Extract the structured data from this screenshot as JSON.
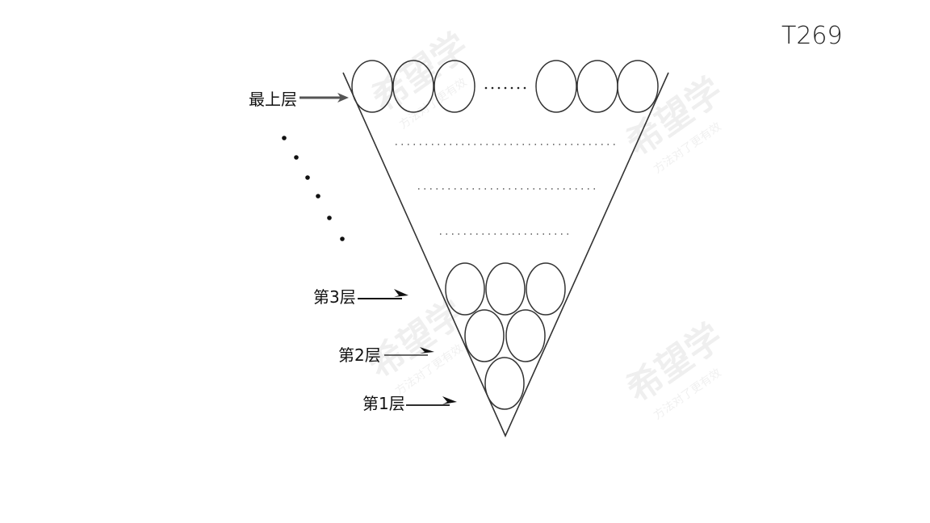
{
  "annotation": "T269",
  "labels": {
    "top": "最上层",
    "layer3": "第3层",
    "layer2": "第2层",
    "layer1": "第1层"
  },
  "watermark": {
    "main": "希望学",
    "sub": "方法对了更有效"
  },
  "colors": {
    "stroke": "#333333",
    "arrow": "#555555"
  }
}
